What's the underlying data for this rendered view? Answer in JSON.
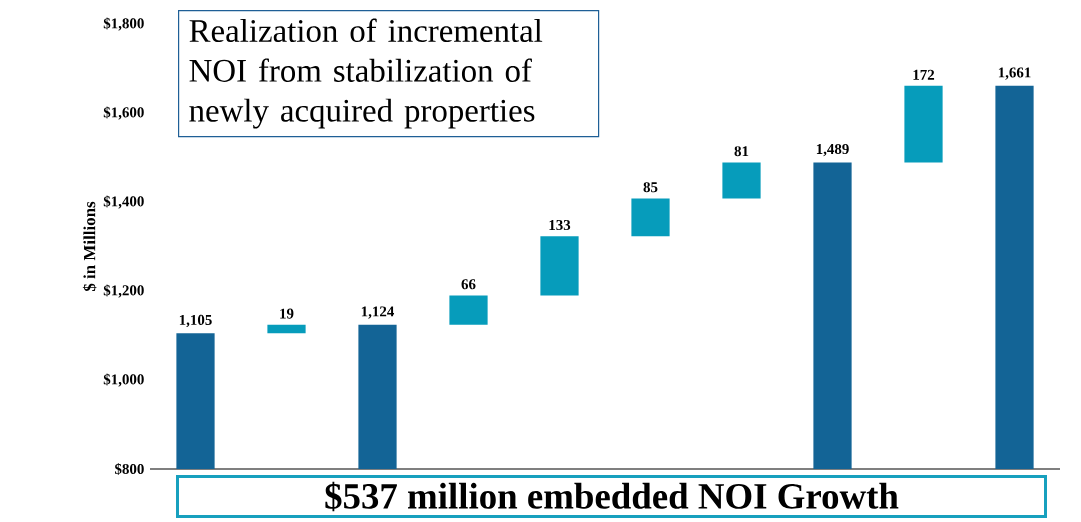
{
  "chart_data": {
    "type": "bar",
    "ylabel": "$ in Millions",
    "categories": [
      null,
      null,
      null,
      null,
      null,
      null,
      null,
      null,
      null,
      null
    ],
    "values": [
      1105,
      19,
      1124,
      66,
      133,
      85,
      81,
      1489,
      172,
      1661
    ],
    "base": [
      null,
      1105,
      null,
      1124,
      1190,
      1323,
      1408,
      null,
      1489,
      null
    ],
    "colors": [
      "#136496",
      "#069cbb",
      "#136496",
      "#069cbb",
      "#069cbb",
      "#069cbb",
      "#069cbb",
      "#136496",
      "#069cbb",
      "#136496"
    ],
    "value_labels": [
      "1,105",
      "19",
      "1,124",
      "66",
      "133",
      "85",
      "81",
      "1,489",
      "172",
      "1,661"
    ],
    "ylim": [
      800,
      1800
    ],
    "yticks": [
      {
        "value": 800,
        "label": "$800"
      },
      {
        "value": 1000,
        "label": "$1,000"
      },
      {
        "value": 1200,
        "label": "$1,200"
      },
      {
        "value": 1400,
        "label": "$1,400"
      },
      {
        "value": 1600,
        "label": "$1,600"
      },
      {
        "value": 1800,
        "label": "$1,800"
      }
    ],
    "grid": false,
    "annotations": [
      "Realization of incremental NOI from stabilization of newly acquired properties",
      "$537 million embedded NOI Growth"
    ]
  }
}
